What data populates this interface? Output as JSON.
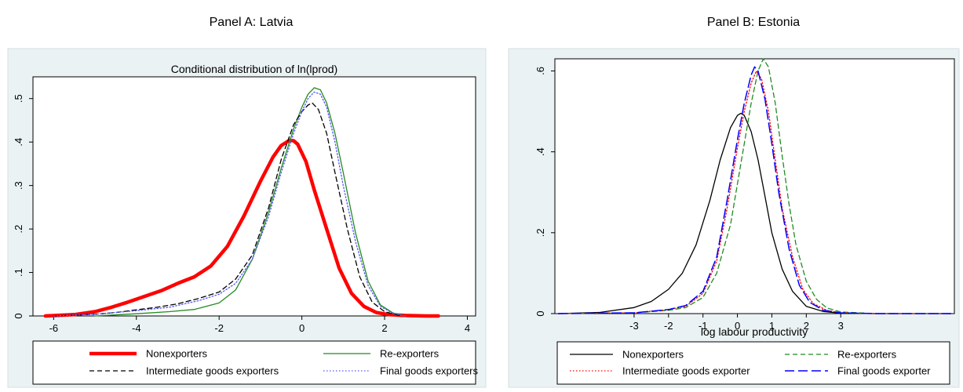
{
  "panel_titles": [
    "Panel A: Latvia",
    "Panel B: Estonia"
  ],
  "chart_data": [
    {
      "type": "line",
      "title": "Conditional distribution of ln(lprod)",
      "xlabel": "",
      "ylabel": "",
      "xlim": [
        -6.5,
        4.2
      ],
      "ylim": [
        0,
        0.55
      ],
      "xticks": [
        -6,
        -4,
        -2,
        0,
        2,
        4
      ],
      "yticks": [
        0,
        0.1,
        0.2,
        0.3,
        0.4,
        0.5
      ],
      "xtick_labels": [
        "-6",
        "-4",
        "-2",
        "0",
        "2",
        "4"
      ],
      "ytick_labels": [
        "0",
        ".1",
        ".2",
        ".3",
        ".4",
        ".5"
      ],
      "grid": false,
      "legend_position": "bottom",
      "series": [
        {
          "name": "Nonexporters",
          "color": "#ff0000",
          "style": "solid-thick",
          "x": [
            -6.2,
            -5.5,
            -5.0,
            -4.6,
            -4.2,
            -3.8,
            -3.4,
            -3.0,
            -2.6,
            -2.2,
            -1.8,
            -1.4,
            -1.0,
            -0.7,
            -0.5,
            -0.3,
            -0.2,
            -0.1,
            0.1,
            0.3,
            0.6,
            0.9,
            1.2,
            1.5,
            1.8,
            2.1,
            2.5,
            3.0,
            3.3
          ],
          "y": [
            0.0,
            0.003,
            0.01,
            0.02,
            0.032,
            0.045,
            0.058,
            0.075,
            0.09,
            0.115,
            0.16,
            0.23,
            0.31,
            0.365,
            0.392,
            0.404,
            0.403,
            0.395,
            0.355,
            0.29,
            0.2,
            0.11,
            0.052,
            0.022,
            0.008,
            0.003,
            0.001,
            0.0,
            0.0
          ]
        },
        {
          "name": "Re-exporters",
          "color": "#228b22",
          "style": "solid",
          "x": [
            -5.0,
            -4.0,
            -3.2,
            -2.6,
            -2.0,
            -1.6,
            -1.2,
            -0.8,
            -0.5,
            -0.2,
            0.0,
            0.15,
            0.3,
            0.45,
            0.6,
            0.8,
            1.0,
            1.3,
            1.6,
            1.9,
            2.2,
            2.5
          ],
          "y": [
            0.0,
            0.005,
            0.01,
            0.015,
            0.03,
            0.06,
            0.13,
            0.24,
            0.34,
            0.43,
            0.48,
            0.51,
            0.525,
            0.52,
            0.49,
            0.42,
            0.33,
            0.19,
            0.08,
            0.025,
            0.007,
            0.0
          ]
        },
        {
          "name": "Intermediate goods exporters",
          "color": "#000000",
          "style": "dash",
          "x": [
            -6.0,
            -5.0,
            -4.5,
            -4.0,
            -3.5,
            -3.0,
            -2.5,
            -2.0,
            -1.6,
            -1.2,
            -0.8,
            -0.5,
            -0.2,
            0.0,
            0.15,
            0.25,
            0.4,
            0.6,
            0.8,
            1.1,
            1.4,
            1.7,
            2.0,
            2.4
          ],
          "y": [
            0.0,
            0.004,
            0.008,
            0.014,
            0.02,
            0.028,
            0.04,
            0.055,
            0.085,
            0.14,
            0.25,
            0.36,
            0.44,
            0.47,
            0.485,
            0.49,
            0.475,
            0.42,
            0.33,
            0.2,
            0.09,
            0.032,
            0.01,
            0.0
          ]
        },
        {
          "name": "Final goods exporters",
          "color": "#5555ff",
          "style": "dot",
          "x": [
            -6.0,
            -5.0,
            -4.0,
            -3.2,
            -2.5,
            -2.0,
            -1.6,
            -1.2,
            -0.8,
            -0.5,
            -0.2,
            0.0,
            0.15,
            0.3,
            0.45,
            0.6,
            0.8,
            1.0,
            1.3,
            1.6,
            1.9,
            2.2,
            2.5
          ],
          "y": [
            0.0,
            0.004,
            0.012,
            0.02,
            0.035,
            0.05,
            0.075,
            0.13,
            0.23,
            0.33,
            0.42,
            0.47,
            0.5,
            0.515,
            0.51,
            0.48,
            0.4,
            0.3,
            0.17,
            0.07,
            0.022,
            0.006,
            0.0
          ]
        }
      ]
    },
    {
      "type": "line",
      "title": "",
      "xlabel": "log labour productivity",
      "ylabel": "",
      "xlim": [
        -5.3,
        6.3
      ],
      "ylim": [
        0,
        0.63
      ],
      "xticks": [
        -3,
        -2,
        -1,
        0,
        1,
        2,
        3
      ],
      "yticks": [
        0,
        0.2,
        0.4,
        0.6
      ],
      "xtick_labels": [
        "-3",
        "-2",
        "-1",
        "0",
        "1",
        "2",
        "3"
      ],
      "ytick_labels": [
        "0",
        ".2",
        ".4",
        ".6"
      ],
      "grid": false,
      "legend_position": "bottom",
      "series": [
        {
          "name": "Nonexporters",
          "color": "#000000",
          "style": "solid",
          "x": [
            -5.2,
            -4.0,
            -3.0,
            -2.5,
            -2.0,
            -1.6,
            -1.2,
            -0.8,
            -0.5,
            -0.2,
            0.0,
            0.1,
            0.2,
            0.4,
            0.6,
            0.8,
            1.0,
            1.3,
            1.6,
            2.0,
            2.5,
            3.0,
            4.0,
            6.2
          ],
          "y": [
            0.0,
            0.003,
            0.015,
            0.03,
            0.06,
            0.1,
            0.17,
            0.28,
            0.38,
            0.46,
            0.49,
            0.495,
            0.49,
            0.45,
            0.38,
            0.29,
            0.2,
            0.11,
            0.055,
            0.018,
            0.005,
            0.001,
            0.0,
            0.0
          ]
        },
        {
          "name": "Re-exporters",
          "color": "#228b22",
          "style": "dash",
          "x": [
            -5.2,
            -3.0,
            -2.0,
            -1.5,
            -1.0,
            -0.6,
            -0.2,
            0.1,
            0.4,
            0.6,
            0.75,
            0.9,
            1.1,
            1.3,
            1.5,
            1.7,
            2.0,
            2.3,
            2.6,
            3.0,
            4.0,
            6.2
          ],
          "y": [
            0.0,
            0.002,
            0.008,
            0.015,
            0.04,
            0.1,
            0.22,
            0.37,
            0.52,
            0.6,
            0.63,
            0.61,
            0.52,
            0.39,
            0.27,
            0.17,
            0.08,
            0.035,
            0.014,
            0.004,
            0.0,
            0.0
          ]
        },
        {
          "name": "Intermediate goods exporter",
          "color": "#ff0000",
          "style": "dot",
          "x": [
            -5.2,
            -3.0,
            -2.0,
            -1.5,
            -1.0,
            -0.6,
            -0.3,
            0.0,
            0.2,
            0.4,
            0.55,
            0.7,
            0.9,
            1.1,
            1.3,
            1.6,
            1.9,
            2.2,
            2.6,
            3.0,
            4.0,
            6.2
          ],
          "y": [
            0.0,
            0.002,
            0.01,
            0.018,
            0.05,
            0.13,
            0.26,
            0.41,
            0.5,
            0.57,
            0.6,
            0.58,
            0.5,
            0.38,
            0.26,
            0.14,
            0.06,
            0.025,
            0.008,
            0.002,
            0.0,
            0.0
          ]
        },
        {
          "name": "Final goods exporter",
          "color": "#0000ff",
          "style": "longdash",
          "x": [
            -5.2,
            -3.0,
            -2.0,
            -1.5,
            -1.0,
            -0.6,
            -0.3,
            0.0,
            0.2,
            0.4,
            0.5,
            0.6,
            0.8,
            1.0,
            1.2,
            1.5,
            1.8,
            2.1,
            2.5,
            3.0,
            4.0,
            6.2
          ],
          "y": [
            0.0,
            0.002,
            0.01,
            0.02,
            0.055,
            0.14,
            0.28,
            0.43,
            0.52,
            0.59,
            0.61,
            0.6,
            0.53,
            0.42,
            0.3,
            0.16,
            0.07,
            0.028,
            0.008,
            0.002,
            0.0,
            0.0
          ]
        }
      ]
    }
  ]
}
